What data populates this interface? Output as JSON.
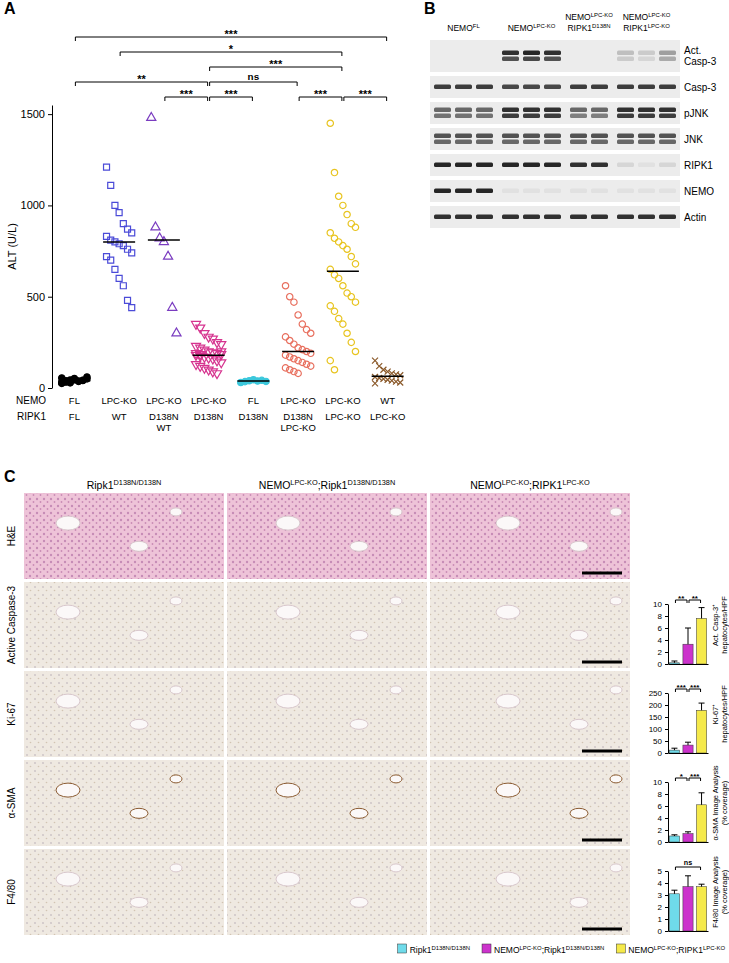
{
  "panel_labels": [
    "A",
    "B",
    "C"
  ],
  "chart_data": [
    {
      "type": "scatter",
      "ylabel": "ALT (U/L)",
      "ylim": [
        0,
        1550
      ],
      "yticks": [
        0,
        500,
        1000,
        1500
      ],
      "x_rows": [
        {
          "label": "NEMO",
          "categories": [
            [
              "FL"
            ],
            [
              "LPC-KO"
            ],
            [
              "LPC-KO"
            ],
            [
              "LPC-KO"
            ],
            [
              "FL"
            ],
            [
              "LPC-KO"
            ],
            [
              "LPC-KO"
            ],
            [
              "WT"
            ]
          ]
        },
        {
          "label": "RIPK1",
          "categories": [
            [
              "FL"
            ],
            [
              "WT"
            ],
            [
              "D138N",
              "WT"
            ],
            [
              "D138N"
            ],
            [
              "D138N"
            ],
            [
              "D138N",
              "LPC-KO"
            ],
            [
              "LPC-KO"
            ],
            [
              "LPC-KO"
            ]
          ]
        }
      ],
      "series": [
        {
          "color": "#000000",
          "marker": "circle",
          "mean": 40,
          "values": [
            30,
            35,
            40,
            45,
            38,
            42,
            50,
            55,
            33,
            28,
            47,
            36,
            41,
            60,
            25,
            39,
            44,
            52
          ]
        },
        {
          "color": "#4b4bd8",
          "marker": "open-square",
          "mean": 800,
          "values": [
            1210,
            1110,
            1000,
            960,
            900,
            870,
            850,
            830,
            810,
            800,
            790,
            780,
            760,
            740,
            720,
            700,
            650,
            600,
            560,
            480,
            440
          ]
        },
        {
          "color": "#7a3cc0",
          "marker": "open-triangle-up",
          "mean": 810,
          "values": [
            1480,
            880,
            820,
            800,
            720,
            440,
            300
          ]
        },
        {
          "color": "#d6338f",
          "marker": "open-triangle-down",
          "mean": 180,
          "values": [
            350,
            330,
            300,
            280,
            270,
            250,
            240,
            230,
            220,
            210,
            200,
            195,
            190,
            185,
            180,
            175,
            170,
            165,
            160,
            150,
            140,
            130,
            120,
            110,
            100,
            90,
            80,
            200,
            190,
            185
          ]
        },
        {
          "color": "#3cc8dc",
          "marker": "circle",
          "mean": 38,
          "values": [
            30,
            35,
            40,
            45,
            38,
            42,
            36
          ]
        },
        {
          "color": "#e8705f",
          "marker": "open-circle",
          "mean": 200,
          "values": [
            560,
            500,
            470,
            400,
            350,
            320,
            300,
            280,
            260,
            240,
            220,
            210,
            200,
            190,
            180,
            170,
            160,
            150,
            140,
            130,
            120,
            110,
            100,
            90,
            80
          ]
        },
        {
          "color": "#e8c420",
          "marker": "open-circle",
          "mean": 640,
          "values": [
            1450,
            1180,
            1050,
            1000,
            950,
            900,
            880,
            850,
            820,
            800,
            780,
            760,
            720,
            680,
            650,
            620,
            600,
            560,
            520,
            500,
            470,
            450,
            420,
            380,
            350,
            300,
            250,
            200,
            150,
            100
          ]
        },
        {
          "color": "#8b5a2b",
          "marker": "x",
          "mean": 65,
          "values": [
            150,
            120,
            100,
            90,
            80,
            75,
            70,
            60,
            55,
            50,
            45,
            40,
            35,
            30,
            25
          ]
        }
      ],
      "significance": [
        {
          "from": 3,
          "to": 4,
          "label": "***"
        },
        {
          "from": 6,
          "to": 7,
          "label": "***"
        },
        {
          "from": 2,
          "to": 3,
          "label": "***"
        },
        {
          "from": 5,
          "to": 6,
          "label": "***"
        },
        {
          "from": 3,
          "to": 5,
          "label": "ns"
        },
        {
          "from": 3,
          "to": 6,
          "label": "***"
        },
        {
          "from": 0,
          "to": 3,
          "label": "**"
        },
        {
          "from": 1,
          "to": 6,
          "label": "*"
        },
        {
          "from": 0,
          "to": 7,
          "label": "***"
        }
      ]
    },
    {
      "type": "bar",
      "categories": [
        null,
        null,
        null
      ],
      "values": [
        0.2,
        3.3,
        7.6
      ],
      "errors": [
        0.3,
        2.7,
        1.8
      ],
      "colors": [
        "#6fdbea",
        "#cc33cc",
        "#f5e94a"
      ],
      "ylabel": [
        "Act. Casp-3⁺",
        "hepatocytes/HPF"
      ],
      "ylim": [
        0,
        10
      ],
      "yticks": [
        0,
        2,
        4,
        6,
        8,
        10
      ],
      "significance": [
        {
          "from": 0,
          "to": 1,
          "label": "**"
        },
        {
          "from": 1,
          "to": 2,
          "label": "**"
        }
      ]
    },
    {
      "type": "bar",
      "categories": [
        null,
        null,
        null
      ],
      "values": [
        12,
        33,
        178
      ],
      "errors": [
        8,
        12,
        30
      ],
      "colors": [
        "#6fdbea",
        "#cc33cc",
        "#f5e94a"
      ],
      "ylabel": [
        "Ki-67⁺",
        "hepatocytes/HPF"
      ],
      "ylim": [
        0,
        250
      ],
      "yticks": [
        0,
        50,
        100,
        150,
        200,
        250
      ],
      "significance": [
        {
          "from": 0,
          "to": 1,
          "label": "***"
        },
        {
          "from": 1,
          "to": 2,
          "label": "***"
        }
      ]
    },
    {
      "type": "bar",
      "categories": [
        null,
        null,
        null
      ],
      "values": [
        1.0,
        1.4,
        6.2
      ],
      "errors": [
        0.2,
        0.3,
        2.0
      ],
      "colors": [
        "#6fdbea",
        "#cc33cc",
        "#f5e94a"
      ],
      "ylabel": [
        "α-SMA Image Analysis",
        "(% coverage)"
      ],
      "ylim": [
        0,
        10
      ],
      "yticks": [
        0,
        2,
        4,
        6,
        8,
        10
      ],
      "significance": [
        {
          "from": 0,
          "to": 1,
          "label": "*"
        },
        {
          "from": 1,
          "to": 2,
          "label": "***"
        }
      ]
    },
    {
      "type": "bar",
      "categories": [
        null,
        null,
        null
      ],
      "values": [
        3.1,
        3.7,
        3.7
      ],
      "errors": [
        0.3,
        0.9,
        0.2
      ],
      "colors": [
        "#6fdbea",
        "#cc33cc",
        "#f5e94a"
      ],
      "ylabel": [
        "F4/80 Image Analysis",
        "(% coverage)"
      ],
      "ylim": [
        0,
        5
      ],
      "yticks": [
        0,
        1,
        2,
        3,
        4,
        5
      ],
      "significance": [
        {
          "from": 0,
          "to": 2,
          "label": "ns"
        }
      ]
    }
  ],
  "blot": {
    "groups": [
      {
        "label": [
          [
            {
              "text": "NEMO"
            },
            {
              "text": "FL",
              "sup": true
            }
          ]
        ],
        "lanes": 3
      },
      {
        "label": [
          [
            {
              "text": "NEMO"
            },
            {
              "text": "LPC-KO",
              "sup": true
            }
          ]
        ],
        "lanes": 3
      },
      {
        "label": [
          [
            {
              "text": "NEMO"
            },
            {
              "text": "LPC-KO",
              "sup": true
            }
          ],
          [
            {
              "text": "RIPK1"
            },
            {
              "text": "D138N",
              "sup": true
            }
          ]
        ],
        "lanes": 2
      },
      {
        "label": [
          [
            {
              "text": "NEMO"
            },
            {
              "text": "LPC-KO",
              "sup": true
            }
          ],
          [
            {
              "text": "RIPK1"
            },
            {
              "text": "LPC-KO",
              "sup": true
            }
          ]
        ],
        "lanes": 3
      }
    ],
    "rows": [
      {
        "label": [
          "Act.",
          "Casp-3"
        ],
        "bands": [
          [
            0,
            0,
            0,
            0.85,
            0.9,
            0.85,
            0,
            0,
            0.2,
            0.15,
            0.35
          ],
          [
            0,
            0,
            0,
            0.7,
            0.75,
            0.7,
            0,
            0,
            0.15,
            0.1,
            0.3
          ]
        ]
      },
      {
        "label": [
          "Casp-3"
        ],
        "bands": [
          [
            0.8,
            0.8,
            0.8,
            0.75,
            0.75,
            0.75,
            0.8,
            0.8,
            0.8,
            0.8,
            0.8
          ]
        ]
      },
      {
        "label": [
          "pJNK"
        ],
        "bands": [
          [
            0.6,
            0.6,
            0.6,
            0.85,
            0.85,
            0.85,
            0.6,
            0.6,
            0.85,
            0.85,
            0.85
          ],
          [
            0.55,
            0.55,
            0.55,
            0.8,
            0.8,
            0.8,
            0.5,
            0.5,
            0.8,
            0.8,
            0.8
          ]
        ]
      },
      {
        "label": [
          "JNK"
        ],
        "bands": [
          [
            0.7,
            0.7,
            0.7,
            0.7,
            0.7,
            0.7,
            0.7,
            0.7,
            0.7,
            0.7,
            0.7
          ],
          [
            0.6,
            0.6,
            0.6,
            0.6,
            0.6,
            0.6,
            0.6,
            0.6,
            0.6,
            0.6,
            0.6
          ]
        ]
      },
      {
        "label": [
          "RIPK1"
        ],
        "bands": [
          [
            0.9,
            0.9,
            0.9,
            0.9,
            0.9,
            0.9,
            0.85,
            0.85,
            0.1,
            0.05,
            0.1
          ]
        ]
      },
      {
        "label": [
          "NEMO"
        ],
        "bands": [
          [
            0.9,
            0.9,
            0.9,
            0.05,
            0.05,
            0.05,
            0.05,
            0.05,
            0.05,
            0.05,
            0.05
          ]
        ]
      },
      {
        "label": [
          "Actin"
        ],
        "bands": [
          [
            0.85,
            0.85,
            0.85,
            0.85,
            0.85,
            0.85,
            0.85,
            0.85,
            0.85,
            0.85,
            0.85
          ]
        ]
      }
    ]
  },
  "histology": {
    "columns": [
      [
        {
          "text": "Ripk1"
        },
        {
          "text": "D138N/D138N",
          "sup": true
        }
      ],
      [
        {
          "text": "NEMO"
        },
        {
          "text": "LPC-KO",
          "sup": true
        },
        {
          "text": ";Ripk1"
        },
        {
          "text": "D138N/D138N",
          "sup": true
        }
      ],
      [
        {
          "text": "NEMO"
        },
        {
          "text": "LPC-KO",
          "sup": true
        },
        {
          "text": ";RIPK1"
        },
        {
          "text": "LPC-KO",
          "sup": true
        }
      ]
    ],
    "rows": [
      "H&E",
      "Active Caspase-3",
      "Ki-67",
      "α-SMA",
      "F4/80"
    ]
  },
  "legend": [
    {
      "label": [
        {
          "text": "Ripk1"
        },
        {
          "text": "D138N/D138N",
          "sup": true
        }
      ],
      "color": "#6fdbea"
    },
    {
      "label": [
        {
          "text": "NEMO"
        },
        {
          "text": "LPC-KO",
          "sup": true
        },
        {
          "text": ";Ripk1"
        },
        {
          "text": "D138N/D138N",
          "sup": true
        }
      ],
      "color": "#cc33cc"
    },
    {
      "label": [
        {
          "text": "NEMO"
        },
        {
          "text": "LPC-KO",
          "sup": true
        },
        {
          "text": ";RIPK1"
        },
        {
          "text": "LPC-KO",
          "sup": true
        }
      ],
      "color": "#f5e94a"
    }
  ]
}
